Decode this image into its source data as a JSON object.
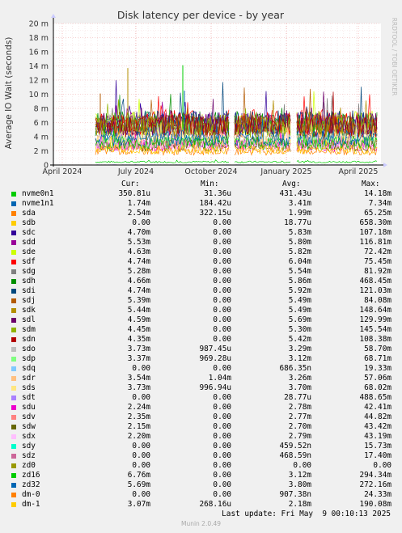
{
  "chart_data": {
    "type": "line",
    "title": "Disk latency per device - by year",
    "ylabel": "Average IO Wait (seconds)",
    "side_label": "RRDTOOL / TOBI OETIKER",
    "y_ticks": [
      "0",
      "2 m",
      "4 m",
      "6 m",
      "8 m",
      "10 m",
      "12 m",
      "14 m",
      "16 m",
      "18 m",
      "20 m"
    ],
    "ylim": [
      0,
      20
    ],
    "x_ticks": [
      "April 2024",
      "July 2024",
      "October 2024",
      "January 2025",
      "April 2025"
    ],
    "grid": true,
    "columns": [
      "Cur:",
      "Min:",
      "Avg:",
      "Max:"
    ],
    "series": [
      {
        "name": "nvme0n1",
        "color": "#00cc00",
        "cur": "350.81u",
        "min": "31.36u",
        "avg": "431.43u",
        "max": "14.18m"
      },
      {
        "name": "nvme1n1",
        "color": "#0066b3",
        "cur": "1.74m",
        "min": "184.42u",
        "avg": "3.41m",
        "max": "7.34m"
      },
      {
        "name": "sda",
        "color": "#ff8000",
        "cur": "2.54m",
        "min": "322.15u",
        "avg": "1.99m",
        "max": "65.25m"
      },
      {
        "name": "sdb",
        "color": "#ffcc00",
        "cur": "0.00",
        "min": "0.00",
        "avg": "18.77u",
        "max": "658.30m"
      },
      {
        "name": "sdc",
        "color": "#330099",
        "cur": "4.70m",
        "min": "0.00",
        "avg": "5.83m",
        "max": "107.18m"
      },
      {
        "name": "sdd",
        "color": "#990099",
        "cur": "5.53m",
        "min": "0.00",
        "avg": "5.80m",
        "max": "116.81m"
      },
      {
        "name": "sde",
        "color": "#ccff00",
        "cur": "4.63m",
        "min": "0.00",
        "avg": "5.82m",
        "max": "72.42m"
      },
      {
        "name": "sdf",
        "color": "#ff0000",
        "cur": "4.74m",
        "min": "0.00",
        "avg": "6.04m",
        "max": "75.45m"
      },
      {
        "name": "sdg",
        "color": "#808080",
        "cur": "5.28m",
        "min": "0.00",
        "avg": "5.54m",
        "max": "81.92m"
      },
      {
        "name": "sdh",
        "color": "#008f00",
        "cur": "4.66m",
        "min": "0.00",
        "avg": "5.86m",
        "max": "468.45m"
      },
      {
        "name": "sdi",
        "color": "#00487d",
        "cur": "4.74m",
        "min": "0.00",
        "avg": "5.92m",
        "max": "121.03m"
      },
      {
        "name": "sdj",
        "color": "#b35a00",
        "cur": "5.39m",
        "min": "0.00",
        "avg": "5.49m",
        "max": "84.08m"
      },
      {
        "name": "sdk",
        "color": "#b38f00",
        "cur": "5.44m",
        "min": "0.00",
        "avg": "5.49m",
        "max": "148.64m"
      },
      {
        "name": "sdl",
        "color": "#6b006b",
        "cur": "4.59m",
        "min": "0.00",
        "avg": "5.69m",
        "max": "129.99m"
      },
      {
        "name": "sdm",
        "color": "#8fb300",
        "cur": "4.45m",
        "min": "0.00",
        "avg": "5.30m",
        "max": "145.54m"
      },
      {
        "name": "sdn",
        "color": "#b30000",
        "cur": "4.35m",
        "min": "0.00",
        "avg": "5.42m",
        "max": "108.38m"
      },
      {
        "name": "sdo",
        "color": "#bebebe",
        "cur": "3.73m",
        "min": "987.45u",
        "avg": "3.29m",
        "max": "58.70m"
      },
      {
        "name": "sdp",
        "color": "#80ff80",
        "cur": "3.37m",
        "min": "969.28u",
        "avg": "3.12m",
        "max": "68.71m"
      },
      {
        "name": "sdq",
        "color": "#80c9ff",
        "cur": "0.00",
        "min": "0.00",
        "avg": "686.35n",
        "max": "19.33m"
      },
      {
        "name": "sdr",
        "color": "#ffc080",
        "cur": "3.54m",
        "min": "1.04m",
        "avg": "3.26m",
        "max": "57.06m"
      },
      {
        "name": "sds",
        "color": "#ffe680",
        "cur": "3.73m",
        "min": "996.94u",
        "avg": "3.70m",
        "max": "68.02m"
      },
      {
        "name": "sdt",
        "color": "#aa80ff",
        "cur": "0.00",
        "min": "0.00",
        "avg": "28.77u",
        "max": "488.65m"
      },
      {
        "name": "sdu",
        "color": "#ee00cc",
        "cur": "2.24m",
        "min": "0.00",
        "avg": "2.78m",
        "max": "42.41m"
      },
      {
        "name": "sdv",
        "color": "#ff8080",
        "cur": "2.35m",
        "min": "0.00",
        "avg": "2.77m",
        "max": "44.82m"
      },
      {
        "name": "sdw",
        "color": "#666600",
        "cur": "2.15m",
        "min": "0.00",
        "avg": "2.70m",
        "max": "43.42m"
      },
      {
        "name": "sdx",
        "color": "#ffbfff",
        "cur": "2.20m",
        "min": "0.00",
        "avg": "2.79m",
        "max": "43.19m"
      },
      {
        "name": "sdy",
        "color": "#00ffcc",
        "cur": "0.00",
        "min": "0.00",
        "avg": "459.52n",
        "max": "15.73m"
      },
      {
        "name": "sdz",
        "color": "#cc6699",
        "cur": "0.00",
        "min": "0.00",
        "avg": "468.59n",
        "max": "17.40m"
      },
      {
        "name": "zd0",
        "color": "#999900",
        "cur": "0.00",
        "min": "0.00",
        "avg": "0.00",
        "max": "0.00"
      },
      {
        "name": "zd16",
        "color": "#00cc00",
        "cur": "6.76m",
        "min": "0.00",
        "avg": "3.12m",
        "max": "294.34m"
      },
      {
        "name": "zd32",
        "color": "#0066b3",
        "cur": "5.69m",
        "min": "0.00",
        "avg": "3.80m",
        "max": "272.16m"
      },
      {
        "name": "dm-0",
        "color": "#ff8000",
        "cur": "0.00",
        "min": "0.00",
        "avg": "907.38n",
        "max": "24.33m"
      },
      {
        "name": "dm-1",
        "color": "#ffcc00",
        "cur": "3.07m",
        "min": "268.16u",
        "avg": "2.18m",
        "max": "190.08m"
      }
    ]
  },
  "footer": {
    "last_update": "Last update: Fri May  9 00:10:13 2025",
    "version": "Munin 2.0.49"
  }
}
